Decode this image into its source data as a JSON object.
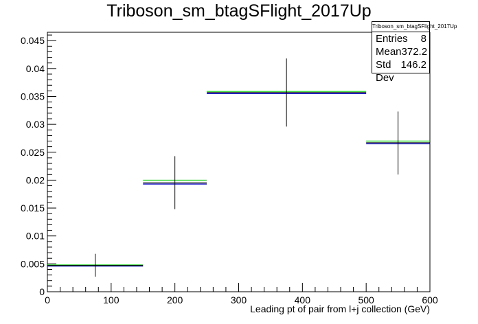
{
  "chart_data": {
    "type": "histogram",
    "title": "Triboson_sm_btagSFlight_2017Up",
    "xlabel": "Leading pt of pair from l+j collection (GeV)",
    "ylabel": "",
    "xlim": [
      0,
      600
    ],
    "ylim": [
      0,
      0.0465
    ],
    "xticks": [
      "0",
      "100",
      "200",
      "300",
      "400",
      "500",
      "600"
    ],
    "yticks": [
      "0",
      "0.005",
      "0.01",
      "0.015",
      "0.02",
      "0.025",
      "0.03",
      "0.035",
      "0.04",
      "0.045"
    ],
    "bins": [
      {
        "x_low": 0,
        "x_high": 150,
        "x_center": 75,
        "value": 0.0047,
        "err_low": 0.0027,
        "err_high": 0.0068
      },
      {
        "x_low": 150,
        "x_high": 250,
        "x_center": 200,
        "value": 0.0195,
        "err_low": 0.0148,
        "err_high": 0.0243
      },
      {
        "x_low": 250,
        "x_high": 500,
        "x_center": 375,
        "value": 0.0357,
        "err_low": 0.0296,
        "err_high": 0.0418
      },
      {
        "x_low": 500,
        "x_high": 600,
        "x_center": 550,
        "value": 0.0267,
        "err_low": 0.021,
        "err_high": 0.0323
      }
    ],
    "variations": [
      {
        "color": "#00cc00",
        "values": [
          0.0048,
          0.02,
          0.0359,
          0.027
        ]
      },
      {
        "color": "#0000cc",
        "values": [
          0.0046,
          0.0193,
          0.0355,
          0.0265
        ]
      },
      {
        "color": "#000000",
        "values": [
          0.0047,
          0.0195,
          0.0357,
          0.0267
        ]
      }
    ],
    "stats": {
      "name": "Triboson_sm_btagSFlight_2017Up",
      "rows": [
        {
          "label": "Entries",
          "value": "8"
        },
        {
          "label": "Mean",
          "value": "372.2"
        },
        {
          "label": "Std Dev",
          "value": "146.2"
        }
      ]
    }
  }
}
